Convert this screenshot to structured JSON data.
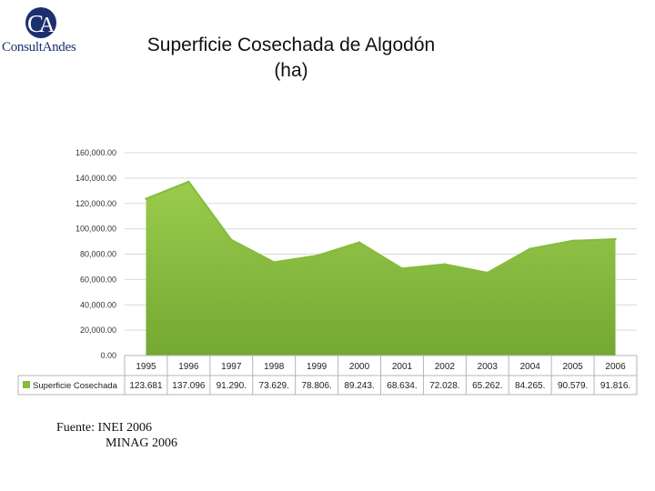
{
  "logo": {
    "monogram": "CA",
    "name": "ConsultAndes"
  },
  "title": {
    "line1": "Superficie Cosechada de Algodón",
    "line2": "(ha)"
  },
  "chart_data": {
    "type": "area",
    "title": "",
    "xlabel": "",
    "ylabel": "",
    "categories": [
      "1995",
      "1996",
      "1997",
      "1998",
      "1999",
      "2000",
      "2001",
      "2002",
      "2003",
      "2004",
      "2005",
      "2006"
    ],
    "series": [
      {
        "name": "Superficie Cosechada",
        "values": [
          123681,
          137096,
          91290,
          73629,
          78806,
          89243,
          68634,
          72028,
          65262,
          84265,
          90579,
          91816
        ],
        "table_labels": [
          "123.681",
          "137.096",
          "91.290.",
          "73.629.",
          "78.806.",
          "89.243.",
          "68.634.",
          "72.028.",
          "65.262.",
          "84.265.",
          "90.579.",
          "91.816."
        ]
      }
    ],
    "y_ticks": [
      "0.00",
      "20,000.00",
      "40,000.00",
      "60,000.00",
      "80,000.00",
      "100,000.00",
      "120,000.00",
      "140,000.00",
      "160,000.00"
    ],
    "ylim": [
      0,
      160000
    ],
    "grid": true,
    "legend": "data-table",
    "colors": {
      "area": "#8cbf3f",
      "area_dark": "#6ea52f",
      "grid": "#d9d9d9",
      "table_border": "#b5b5b5"
    }
  },
  "source": {
    "line1": "Fuente: INEI 2006",
    "line2": "MINAG 2006"
  }
}
